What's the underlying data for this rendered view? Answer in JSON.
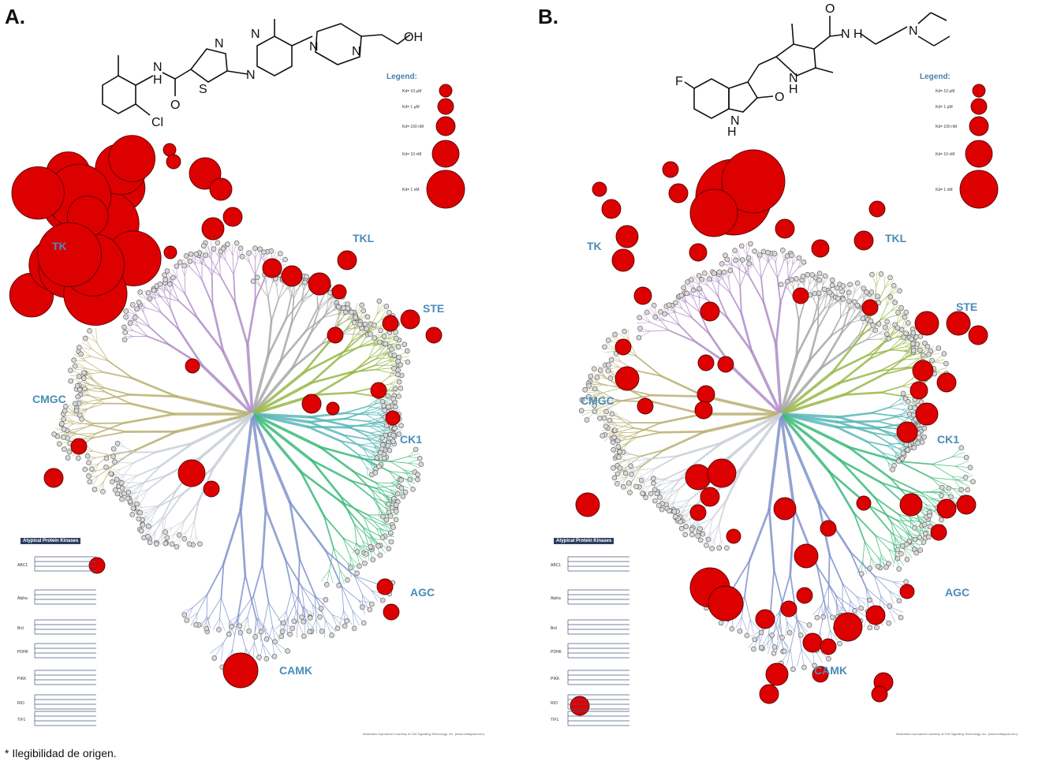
{
  "footnote": "* Ilegibilidad de origen.",
  "legend": {
    "title": "Legend:",
    "entries": [
      "Kd= 10 µM",
      "Kd= 1 µM",
      "Kd= 100 nM",
      "Kd= 10 nM",
      "Kd= 1 nM"
    ]
  },
  "atypical": {
    "title": "Atypical Protein Kinases",
    "groups": [
      "ABC1",
      "Alpha",
      "Brd",
      "PDHK",
      "PIKK",
      "RIO",
      "TIF1"
    ]
  },
  "credit": "Illustration reproduced courtesy of Cell Signaling Technology, Inc. (www.cellsignal.com)",
  "families": [
    "TK",
    "TKL",
    "STE",
    "CK1",
    "AGC",
    "CAMK",
    "CMGC"
  ],
  "panels": [
    {
      "letter": "A.",
      "molecule_atoms": [
        "N",
        "N",
        "H",
        "N",
        "S",
        "N",
        "H",
        "N",
        "N",
        "OH",
        "O",
        "Cl"
      ]
    },
    {
      "letter": "B.",
      "molecule_atoms": [
        "O",
        "N",
        "H",
        "N",
        "F",
        "N",
        "H",
        "O",
        "N",
        "H"
      ]
    }
  ],
  "colors": {
    "hit": "#dd0000",
    "hit_stroke": "#5a0000",
    "TK": "#b08cc8",
    "TKL": "#a8a8a8",
    "STE": "#9ab84a",
    "CK1": "#5ab8b8",
    "AGC": "#3cba7a",
    "CAMK": "#7f93cc",
    "CMGC": "#b8b070",
    "label": "#4a8cb8"
  }
}
